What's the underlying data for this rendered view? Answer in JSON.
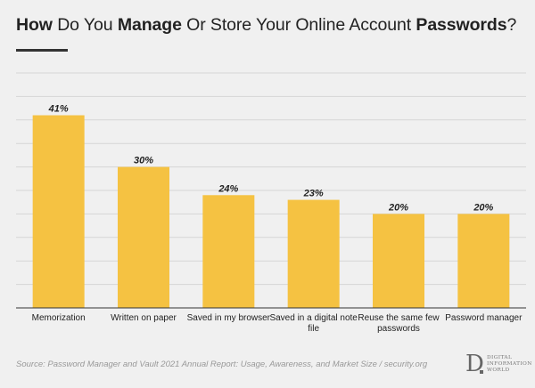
{
  "title": {
    "p1": "How",
    "p2": " Do You ",
    "p3": "Manage",
    "p4": " Or Store Your Online Account ",
    "p5": "Passwords",
    "p6": "?"
  },
  "source": "Source:  Password Manager and Vault 2021 Annual Report: Usage, Awareness, and Market Size / security.org",
  "logo": {
    "letter": "D",
    "line1": "DIGITAL",
    "line2": "INFORMATION",
    "line3": "WORLD"
  },
  "colors": {
    "bar": "#f5c242",
    "grid": "#d6d6d6",
    "axis": "#333333",
    "background": "#f0f0f0"
  },
  "chart_data": {
    "type": "bar",
    "categories": [
      [
        "Memorization"
      ],
      [
        "Written on paper"
      ],
      [
        "Saved in my browser"
      ],
      [
        "Saved in a digital note",
        "file"
      ],
      [
        "Reuse the same few",
        "passwords"
      ],
      [
        "Password manager"
      ]
    ],
    "values": [
      41,
      30,
      24,
      23,
      20,
      20
    ],
    "value_labels": [
      "41%",
      "30%",
      "24%",
      "23%",
      "20%",
      "20%"
    ],
    "ylim": [
      0,
      50
    ],
    "grid": true,
    "xlabel": "",
    "ylabel": ""
  }
}
